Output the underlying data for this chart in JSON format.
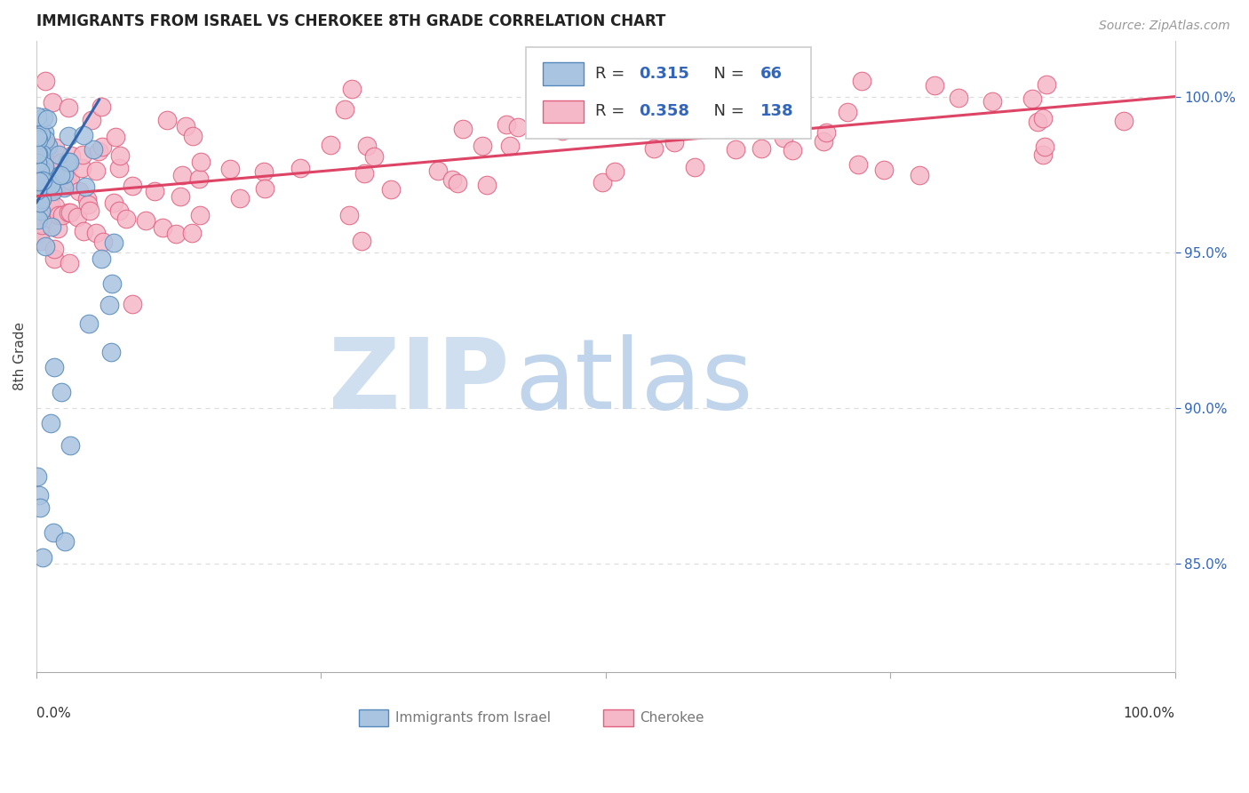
{
  "title": "IMMIGRANTS FROM ISRAEL VS CHEROKEE 8TH GRADE CORRELATION CHART",
  "source": "Source: ZipAtlas.com",
  "ylabel": "8th Grade",
  "legend_blue_R": "0.315",
  "legend_blue_N": "66",
  "legend_pink_R": "0.358",
  "legend_pink_N": "138",
  "blue_color": "#a8c4e0",
  "pink_color": "#f5b8c8",
  "blue_edge_color": "#5588bb",
  "pink_edge_color": "#e06080",
  "blue_line_color": "#3366aa",
  "pink_line_color": "#dd4466",
  "y_ticks": [
    0.85,
    0.9,
    0.95,
    1.0
  ],
  "y_tick_labels": [
    "85.0%",
    "90.0%",
    "95.0%",
    "100.0%"
  ],
  "x_min": 0.0,
  "x_max": 1.0,
  "y_min": 0.815,
  "y_max": 1.018,
  "watermark_zip_color": "#d0dff0",
  "watermark_atlas_color": "#c0d5ec",
  "bg_color": "#ffffff",
  "grid_color": "#dddddd",
  "tick_label_color": "#3366bb",
  "source_color": "#999999",
  "bottom_label_color": "#777777"
}
